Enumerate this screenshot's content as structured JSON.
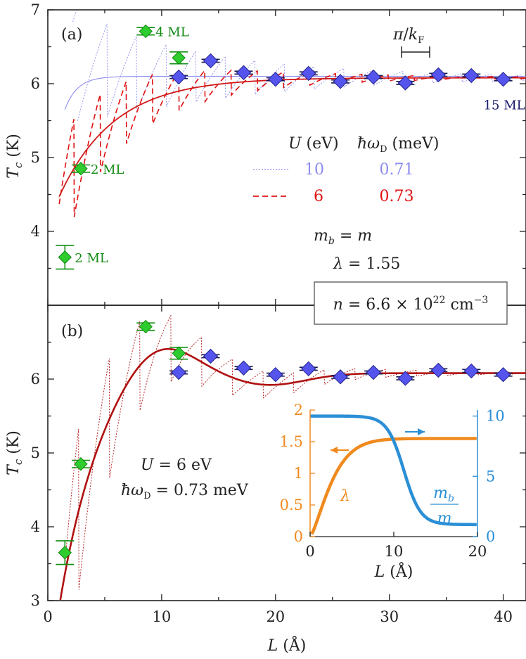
{
  "chart_data": [
    {
      "panel": "(a)",
      "type": "line",
      "xlim": [
        0,
        42
      ],
      "ylim": [
        3,
        7
      ],
      "x_ticks": [
        0,
        10,
        20,
        30,
        40
      ],
      "y_ticks": [
        4,
        5,
        6,
        7
      ],
      "ylabel": "T_c (K)",
      "legend_header": {
        "u": "U (eV)",
        "hw": "ħω_D (meV)"
      },
      "legend": [
        {
          "u": "10",
          "hw": "0.71",
          "style": "dotted",
          "color": "#8c8cf0"
        },
        {
          "u": "6",
          "hw": "0.73",
          "style": "dashed",
          "color": "#e01010"
        }
      ],
      "text_mb": "m_b = m",
      "text_lambda": "λ = 1.55",
      "density_label": "n = 6.6 × 10^22 cm^-3",
      "period_label": "π/k_F",
      "points_green": [
        {
          "x": 1.5,
          "y": 3.65,
          "err": 0.16,
          "label": "2 ML"
        },
        {
          "x": 2.9,
          "y": 4.85,
          "err": 0.05,
          "label": "2 ML"
        },
        {
          "x": 8.6,
          "y": 6.71,
          "err": 0.05,
          "label": "4 ML"
        },
        {
          "x": 11.5,
          "y": 6.35,
          "err": 0.08,
          "label": ""
        }
      ],
      "points_blue": [
        {
          "x": 11.5,
          "y": 6.09,
          "err": 0.02
        },
        {
          "x": 14.3,
          "y": 6.31,
          "err": 0.02
        },
        {
          "x": 17.2,
          "y": 6.15,
          "err": 0.02
        },
        {
          "x": 20.0,
          "y": 6.06,
          "err": 0.02
        },
        {
          "x": 22.9,
          "y": 6.14,
          "err": 0.02
        },
        {
          "x": 25.7,
          "y": 6.03,
          "err": 0.02
        },
        {
          "x": 28.6,
          "y": 6.09,
          "err": 0.02
        },
        {
          "x": 31.4,
          "y": 6.01,
          "err": 0.02
        },
        {
          "x": 34.3,
          "y": 6.12,
          "err": 0.02
        },
        {
          "x": 37.2,
          "y": 6.11,
          "err": 0.02
        },
        {
          "x": 40.0,
          "y": 6.06,
          "err": 0.02,
          "label": "15 ML"
        }
      ]
    },
    {
      "panel": "(b)",
      "type": "line",
      "xlim": [
        0,
        42
      ],
      "ylim": [
        3,
        7
      ],
      "x_ticks": [
        0,
        10,
        20,
        30,
        40
      ],
      "y_ticks": [
        3,
        4,
        5,
        6
      ],
      "xlabel": "L (Å)",
      "ylabel": "T_c (K)",
      "text_u": "U = 6 eV",
      "text_hw": "ħω_D = 0.73 meV",
      "points_green": [
        {
          "x": 1.5,
          "y": 3.65,
          "err": 0.16
        },
        {
          "x": 2.9,
          "y": 4.85,
          "err": 0.05
        },
        {
          "x": 8.6,
          "y": 6.71,
          "err": 0.05
        },
        {
          "x": 11.5,
          "y": 6.35,
          "err": 0.08
        }
      ],
      "points_blue": [
        {
          "x": 11.5,
          "y": 6.09,
          "err": 0.02
        },
        {
          "x": 14.3,
          "y": 6.31,
          "err": 0.02
        },
        {
          "x": 17.2,
          "y": 6.15,
          "err": 0.02
        },
        {
          "x": 20.0,
          "y": 6.06,
          "err": 0.02
        },
        {
          "x": 22.9,
          "y": 6.14,
          "err": 0.02
        },
        {
          "x": 25.7,
          "y": 6.03,
          "err": 0.02
        },
        {
          "x": 28.6,
          "y": 6.09,
          "err": 0.02
        },
        {
          "x": 31.4,
          "y": 6.01,
          "err": 0.02
        },
        {
          "x": 34.3,
          "y": 6.12,
          "err": 0.02
        },
        {
          "x": 37.2,
          "y": 6.11,
          "err": 0.02
        },
        {
          "x": 40.0,
          "y": 6.06,
          "err": 0.02
        }
      ],
      "inset": {
        "xlim": [
          0,
          20
        ],
        "x_ticks": [
          0,
          10,
          20
        ],
        "xlabel": "L (Å)",
        "left_ylim": [
          0,
          2
        ],
        "left_ticks": [
          "0",
          "0.5",
          "1",
          "1.5",
          "2"
        ],
        "left_values": [
          0,
          0.5,
          1,
          1.5,
          2
        ],
        "right_ylim": [
          0,
          10.5
        ],
        "right_ticks": [
          0,
          5,
          10
        ],
        "lambda_label": "λ",
        "ratio_num": "m_b",
        "ratio_den": "m",
        "lambda_color": "#f08a1e",
        "ratio_color": "#2b8fd6"
      }
    }
  ]
}
